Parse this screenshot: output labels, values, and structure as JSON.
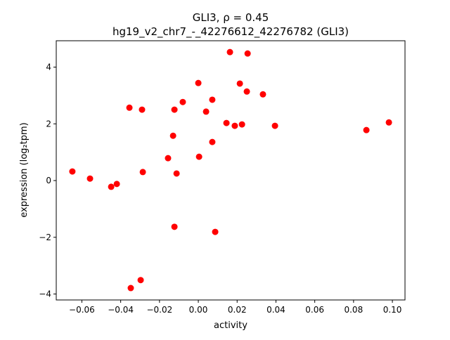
{
  "chart_data": {
    "type": "scatter",
    "title_line1": "GLI3, ρ = 0.45",
    "title_line2": "hg19_v2_chr7_-_42276612_42276782 (GLI3)",
    "xlabel": "activity",
    "ylabel": "expression (log₂tpm)",
    "xlim": [
      -0.0732,
      0.1065
    ],
    "ylim": [
      -4.21,
      4.93
    ],
    "xticks": [
      -0.06,
      -0.04,
      -0.02,
      0.0,
      0.02,
      0.04,
      0.06,
      0.08,
      0.1
    ],
    "xtick_labels": [
      "−0.06",
      "−0.04",
      "−0.02",
      "0.00",
      "0.02",
      "0.04",
      "0.06",
      "0.08",
      "0.10"
    ],
    "yticks": [
      -4,
      -2,
      0,
      2,
      4
    ],
    "ytick_labels": [
      "−4",
      "−2",
      "0",
      "2",
      "4"
    ],
    "grid": false,
    "marker_color": "#ff0000",
    "points": [
      [
        -0.0649,
        0.32
      ],
      [
        -0.0558,
        0.07
      ],
      [
        -0.0449,
        -0.22
      ],
      [
        -0.042,
        -0.12
      ],
      [
        -0.0355,
        2.57
      ],
      [
        -0.0348,
        -3.79
      ],
      [
        -0.0297,
        -3.51
      ],
      [
        -0.029,
        2.5
      ],
      [
        -0.0286,
        0.3
      ],
      [
        -0.0156,
        0.79
      ],
      [
        -0.013,
        1.58
      ],
      [
        -0.0123,
        2.5
      ],
      [
        -0.0123,
        -1.63
      ],
      [
        -0.0112,
        0.25
      ],
      [
        -0.008,
        2.77
      ],
      [
        0.0,
        3.44
      ],
      [
        0.0004,
        0.84
      ],
      [
        0.004,
        2.43
      ],
      [
        0.0072,
        2.85
      ],
      [
        0.0072,
        1.36
      ],
      [
        0.0087,
        -1.81
      ],
      [
        0.0145,
        2.03
      ],
      [
        0.0163,
        4.53
      ],
      [
        0.0188,
        1.93
      ],
      [
        0.0214,
        3.42
      ],
      [
        0.0225,
        1.98
      ],
      [
        0.025,
        3.14
      ],
      [
        0.0254,
        4.48
      ],
      [
        0.0333,
        3.04
      ],
      [
        0.0395,
        1.93
      ],
      [
        0.0866,
        1.78
      ],
      [
        0.0982,
        2.05
      ]
    ]
  }
}
